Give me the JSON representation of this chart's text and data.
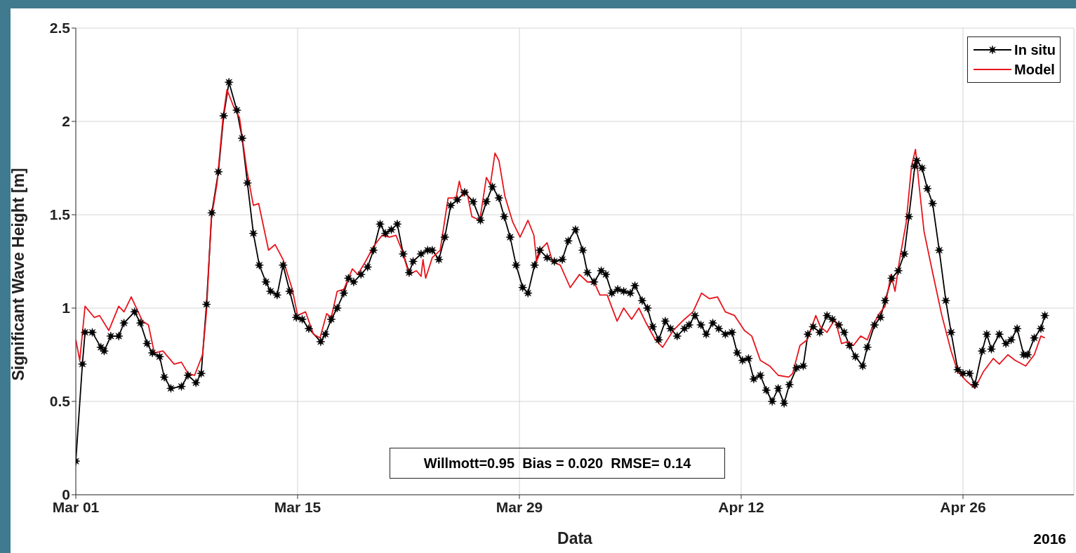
{
  "chart_data": {
    "type": "line",
    "xlabel": "Data",
    "ylabel": "Significant Wave Height [m]",
    "annotations": [
      "Willmott=0.95  Bias = 0.020  RMSE= 0.14",
      "2016"
    ],
    "xlim": [
      "2016-03-01",
      "2016-05-03"
    ],
    "xticks": [
      {
        "value": "2016-03-01",
        "label": "Mar 01"
      },
      {
        "value": "2016-03-15",
        "label": "Mar 15"
      },
      {
        "value": "2016-03-29",
        "label": "Mar 29"
      },
      {
        "value": "2016-04-12",
        "label": "Apr 12"
      },
      {
        "value": "2016-04-26",
        "label": "Apr 26"
      }
    ],
    "ylim": [
      0,
      2.5
    ],
    "yticks": [
      0,
      0.5,
      1,
      1.5,
      2,
      2.5
    ],
    "grid": true,
    "legend": "top right",
    "line_style": "solid",
    "series": [
      {
        "name": "In situ",
        "color": "#000000",
        "marker": "star",
        "x": [
          "2016-03-01T00:00",
          "2016-03-01T10:00",
          "2016-03-01T14:00",
          "2016-03-02T01:00",
          "2016-03-02T14:00",
          "2016-03-02T19:00",
          "2016-03-03T05:00",
          "2016-03-03T17:00",
          "2016-03-04T01:00",
          "2016-03-04T17:00",
          "2016-03-05T02:00",
          "2016-03-05T12:00",
          "2016-03-05T20:00",
          "2016-03-06T07:00",
          "2016-03-06T14:00",
          "2016-03-07T00:00",
          "2016-03-07T16:00",
          "2016-03-08T02:00",
          "2016-03-08T14:00",
          "2016-03-08T22:00",
          "2016-03-09T06:00",
          "2016-03-09T14:00",
          "2016-03-10T00:00",
          "2016-03-10T08:00",
          "2016-03-10T16:00",
          "2016-03-11T04:00",
          "2016-03-11T12:00",
          "2016-03-11T20:00",
          "2016-03-12T05:00",
          "2016-03-12T14:00",
          "2016-03-13T00:00",
          "2016-03-13T07:00",
          "2016-03-13T17:00",
          "2016-03-14T02:00",
          "2016-03-14T12:00",
          "2016-03-14T22:00",
          "2016-03-15T07:00",
          "2016-03-15T17:00",
          "2016-03-16T11:00",
          "2016-03-16T18:00",
          "2016-03-17T03:00",
          "2016-03-17T12:00",
          "2016-03-17T22:00",
          "2016-03-18T05:00",
          "2016-03-18T13:00",
          "2016-03-19T00:00",
          "2016-03-19T10:00",
          "2016-03-19T19:00",
          "2016-03-20T05:00",
          "2016-03-20T13:00",
          "2016-03-20T22:00",
          "2016-03-21T07:00",
          "2016-03-21T16:00",
          "2016-03-22T01:00",
          "2016-03-22T07:00",
          "2016-03-22T19:00",
          "2016-03-23T05:00",
          "2016-03-23T12:00",
          "2016-03-23T22:00",
          "2016-03-24T07:00",
          "2016-03-24T16:00",
          "2016-03-25T02:00",
          "2016-03-25T13:00",
          "2016-03-26T02:00",
          "2016-03-26T13:00",
          "2016-03-26T22:00",
          "2016-03-27T07:00",
          "2016-03-27T17:00",
          "2016-03-28T01:00",
          "2016-03-28T10:00",
          "2016-03-28T19:00",
          "2016-03-29T05:00",
          "2016-03-29T13:00",
          "2016-03-29T23:00",
          "2016-03-30T07:00",
          "2016-03-30T18:00",
          "2016-03-31T05:00",
          "2016-03-31T17:00",
          "2016-04-01T02:00",
          "2016-04-01T13:00",
          "2016-04-02T00:00",
          "2016-04-02T07:00",
          "2016-04-02T17:00",
          "2016-04-03T04:00",
          "2016-04-03T11:00",
          "2016-04-03T20:00",
          "2016-04-04T05:00",
          "2016-04-04T14:00",
          "2016-04-05T00:00",
          "2016-04-05T07:00",
          "2016-04-05T18:00",
          "2016-04-06T02:00",
          "2016-04-06T10:00",
          "2016-04-06T19:00",
          "2016-04-07T05:00",
          "2016-04-07T13:00",
          "2016-04-07T23:00",
          "2016-04-08T10:00",
          "2016-04-08T17:00",
          "2016-04-09T02:00",
          "2016-04-09T11:00",
          "2016-04-09T19:00",
          "2016-04-10T05:00",
          "2016-04-10T14:00",
          "2016-04-11T00:00",
          "2016-04-11T10:00",
          "2016-04-11T18:00",
          "2016-04-12T02:00",
          "2016-04-12T11:00",
          "2016-04-12T19:00",
          "2016-04-13T05:00",
          "2016-04-13T14:00",
          "2016-04-13T23:00",
          "2016-04-14T08:00",
          "2016-04-14T17:00",
          "2016-04-15T01:00",
          "2016-04-15T12:00",
          "2016-04-15T22:00",
          "2016-04-16T05:00",
          "2016-04-16T13:00",
          "2016-04-16T23:00",
          "2016-04-17T10:00",
          "2016-04-17T18:00",
          "2016-04-18T04:00",
          "2016-04-18T12:00",
          "2016-04-18T20:00",
          "2016-04-19T05:00",
          "2016-04-19T16:00",
          "2016-04-19T23:00",
          "2016-04-20T10:00",
          "2016-04-20T19:00",
          "2016-04-21T02:00",
          "2016-04-21T12:00",
          "2016-04-21T22:00",
          "2016-04-22T07:00",
          "2016-04-22T14:00",
          "2016-04-22T23:00",
          "2016-04-23T02:00",
          "2016-04-23T10:00",
          "2016-04-23T18:00",
          "2016-04-24T02:00",
          "2016-04-24T12:00",
          "2016-04-24T22:00",
          "2016-04-25T06:00",
          "2016-04-25T16:00",
          "2016-04-26T00:00",
          "2016-04-26T10:00",
          "2016-04-26T18:00",
          "2016-04-27T05:00",
          "2016-04-27T12:00",
          "2016-04-27T19:00",
          "2016-04-28T07:00",
          "2016-04-28T17:00",
          "2016-04-29T01:00",
          "2016-04-29T10:00",
          "2016-04-29T20:00",
          "2016-04-30T02:00",
          "2016-04-30T12:00",
          "2016-04-30T22:00",
          "2016-05-01T04:00"
        ],
        "values": [
          0.18,
          0.7,
          0.87,
          0.87,
          0.79,
          0.77,
          0.85,
          0.85,
          0.92,
          0.98,
          0.92,
          0.81,
          0.76,
          0.74,
          0.63,
          0.57,
          0.58,
          0.64,
          0.6,
          0.65,
          1.02,
          1.51,
          1.73,
          2.03,
          2.21,
          2.06,
          1.91,
          1.67,
          1.4,
          1.23,
          1.14,
          1.09,
          1.07,
          1.23,
          1.09,
          0.95,
          0.94,
          0.89,
          0.82,
          0.86,
          0.94,
          1.0,
          1.08,
          1.16,
          1.14,
          1.18,
          1.22,
          1.31,
          1.45,
          1.4,
          1.42,
          1.45,
          1.29,
          1.19,
          1.25,
          1.29,
          1.31,
          1.31,
          1.26,
          1.38,
          1.55,
          1.58,
          1.62,
          1.57,
          1.47,
          1.57,
          1.65,
          1.59,
          1.49,
          1.38,
          1.23,
          1.11,
          1.08,
          1.23,
          1.31,
          1.27,
          1.25,
          1.26,
          1.36,
          1.42,
          1.31,
          1.19,
          1.14,
          1.2,
          1.18,
          1.08,
          1.1,
          1.09,
          1.08,
          1.12,
          1.04,
          1.0,
          0.9,
          0.83,
          0.93,
          0.89,
          0.85,
          0.89,
          0.91,
          0.96,
          0.91,
          0.86,
          0.92,
          0.89,
          0.86,
          0.87,
          0.76,
          0.72,
          0.73,
          0.62,
          0.64,
          0.56,
          0.5,
          0.57,
          0.49,
          0.59,
          0.68,
          0.69,
          0.86,
          0.9,
          0.87,
          0.96,
          0.94,
          0.91,
          0.87,
          0.8,
          0.74,
          0.69,
          0.79,
          0.91,
          0.95,
          1.04,
          1.16,
          1.2,
          1.29,
          1.49,
          1.76,
          1.79,
          1.75,
          1.64,
          1.56,
          1.31,
          1.04,
          0.87,
          0.67,
          0.65,
          0.65,
          0.59,
          0.77,
          0.86,
          0.78,
          0.86,
          0.81,
          0.83,
          0.89,
          0.75,
          0.75,
          0.84,
          0.89,
          0.96
        ]
      },
      {
        "name": "Model",
        "color": "#e8141c",
        "marker": "none",
        "x": [
          "2016-03-01T00:00",
          "2016-03-01T06:00",
          "2016-03-01T14:00",
          "2016-03-02T04:00",
          "2016-03-02T12:00",
          "2016-03-03T02:00",
          "2016-03-03T17:00",
          "2016-03-04T01:00",
          "2016-03-04T12:00",
          "2016-03-05T05:00",
          "2016-03-05T14:00",
          "2016-03-05T23:00",
          "2016-03-06T12:00",
          "2016-03-07T05:00",
          "2016-03-07T16:00",
          "2016-03-08T02:00",
          "2016-03-08T12:00",
          "2016-03-09T00:00",
          "2016-03-09T06:00",
          "2016-03-09T13:00",
          "2016-03-09T22:00",
          "2016-03-10T07:00",
          "2016-03-10T13:00",
          "2016-03-10T23:00",
          "2016-03-11T08:00",
          "2016-03-11T19:00",
          "2016-03-12T05:00",
          "2016-03-12T13:00",
          "2016-03-13T04:00",
          "2016-03-13T14:00",
          "2016-03-14T02:00",
          "2016-03-14T16:00",
          "2016-03-15T00:00",
          "2016-03-15T12:00",
          "2016-03-16T00:00",
          "2016-03-16T10:00",
          "2016-03-16T20:00",
          "2016-03-17T03:00",
          "2016-03-17T12:00",
          "2016-03-17T22:00",
          "2016-03-18T11:00",
          "2016-03-18T19:00",
          "2016-03-19T07:00",
          "2016-03-19T19:00",
          "2016-03-20T08:00",
          "2016-03-20T19:00",
          "2016-03-21T05:00",
          "2016-03-21T14:00",
          "2016-03-22T01:00",
          "2016-03-22T12:00",
          "2016-03-22T19:00",
          "2016-03-22T22:00",
          "2016-03-23T02:00",
          "2016-03-23T12:00",
          "2016-03-24T00:00",
          "2016-03-24T12:00",
          "2016-03-25T00:00",
          "2016-03-25T05:00",
          "2016-03-25T10:00",
          "2016-03-25T16:00",
          "2016-03-26T00:00",
          "2016-03-26T12:00",
          "2016-03-26T22:00",
          "2016-03-27T04:00",
          "2016-03-27T11:00",
          "2016-03-27T17:00",
          "2016-03-28T02:00",
          "2016-03-28T14:00",
          "2016-03-29T01:00",
          "2016-03-29T13:00",
          "2016-03-29T22:00",
          "2016-03-30T02:00",
          "2016-03-30T10:00",
          "2016-03-30T18:00",
          "2016-03-31T02:00",
          "2016-03-31T14:00",
          "2016-04-01T05:00",
          "2016-04-01T19:00",
          "2016-04-02T07:00",
          "2016-04-02T17:00",
          "2016-04-03T02:00",
          "2016-04-03T13:00",
          "2016-04-04T04:00",
          "2016-04-04T14:00",
          "2016-04-05T02:00",
          "2016-04-05T13:00",
          "2016-04-06T00:00",
          "2016-04-06T14:00",
          "2016-04-07T01:00",
          "2016-04-07T17:00",
          "2016-04-08T10:00",
          "2016-04-08T23:00",
          "2016-04-09T12:00",
          "2016-04-10T00:00",
          "2016-04-10T12:00",
          "2016-04-11T00:00",
          "2016-04-11T14:00",
          "2016-04-12T05:00",
          "2016-04-12T16:00",
          "2016-04-13T05:00",
          "2016-04-13T19:00",
          "2016-04-14T08:00",
          "2016-04-15T00:00",
          "2016-04-15T06:00",
          "2016-04-15T17:00",
          "2016-04-16T04:00",
          "2016-04-16T17:00",
          "2016-04-17T00:00",
          "2016-04-17T10:00",
          "2016-04-17T22:00",
          "2016-04-18T08:00",
          "2016-04-18T17:00",
          "2016-04-19T02:00",
          "2016-04-19T13:00",
          "2016-04-19T23:00",
          "2016-04-20T08:00",
          "2016-04-20T17:00",
          "2016-04-21T02:00",
          "2016-04-21T11:00",
          "2016-04-21T17:00",
          "2016-04-22T00:00",
          "2016-04-22T10:00",
          "2016-04-22T18:00",
          "2016-04-23T00:00",
          "2016-04-23T06:00",
          "2016-04-23T13:00",
          "2016-04-24T02:00",
          "2016-04-24T16:00",
          "2016-04-25T06:00",
          "2016-04-25T16:00",
          "2016-04-26T05:00",
          "2016-04-26T18:00",
          "2016-04-27T07:00",
          "2016-04-27T22:00",
          "2016-04-28T07:00",
          "2016-04-28T20:00",
          "2016-04-29T07:00",
          "2016-04-29T23:00",
          "2016-04-30T12:00",
          "2016-04-30T22:00",
          "2016-05-01T04:00"
        ],
        "values": [
          0.83,
          0.72,
          1.01,
          0.95,
          0.96,
          0.88,
          1.01,
          0.98,
          1.06,
          0.93,
          0.91,
          0.76,
          0.77,
          0.7,
          0.71,
          0.65,
          0.64,
          0.75,
          0.98,
          1.47,
          1.67,
          2.02,
          2.17,
          2.08,
          2.02,
          1.74,
          1.55,
          1.56,
          1.31,
          1.34,
          1.26,
          1.1,
          0.96,
          0.98,
          0.86,
          0.84,
          0.97,
          0.95,
          1.09,
          1.1,
          1.21,
          1.18,
          1.25,
          1.33,
          1.39,
          1.38,
          1.39,
          1.31,
          1.18,
          1.2,
          1.17,
          1.26,
          1.16,
          1.27,
          1.31,
          1.59,
          1.59,
          1.68,
          1.6,
          1.63,
          1.49,
          1.47,
          1.7,
          1.66,
          1.83,
          1.79,
          1.6,
          1.46,
          1.38,
          1.47,
          1.39,
          1.25,
          1.32,
          1.35,
          1.25,
          1.23,
          1.11,
          1.18,
          1.14,
          1.14,
          1.07,
          1.07,
          0.93,
          1.0,
          0.94,
          1.0,
          0.92,
          0.83,
          0.79,
          0.88,
          0.94,
          0.98,
          1.08,
          1.05,
          1.06,
          0.98,
          0.96,
          0.88,
          0.85,
          0.72,
          0.69,
          0.64,
          0.63,
          0.65,
          0.8,
          0.83,
          0.96,
          0.9,
          0.87,
          0.94,
          0.81,
          0.82,
          0.8,
          0.85,
          0.83,
          0.91,
          0.97,
          1.01,
          1.18,
          1.09,
          1.26,
          1.46,
          1.76,
          1.85,
          1.64,
          1.41,
          1.19,
          0.96,
          0.77,
          0.66,
          0.61,
          0.57,
          0.66,
          0.73,
          0.7,
          0.75,
          0.72,
          0.69,
          0.75,
          0.85,
          0.84
        ]
      }
    ]
  }
}
